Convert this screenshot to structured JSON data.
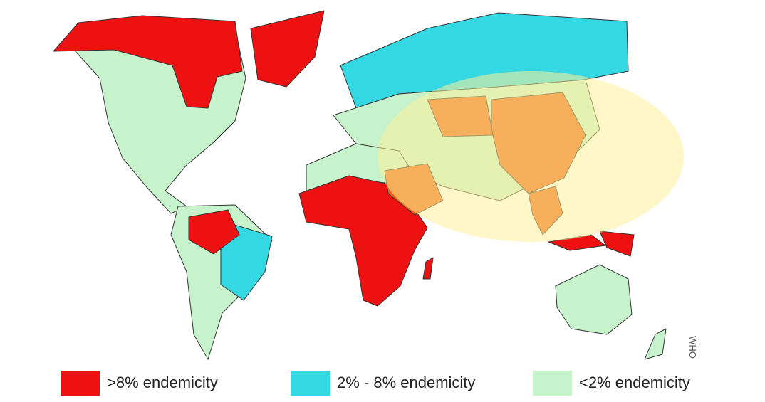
{
  "legend": [
    {
      "label": ">8% endemicity",
      "color": "#ee1111"
    },
    {
      "label": "2% - 8% endemicity",
      "color": "#33d8e2"
    },
    {
      "label": "<2% endemicity",
      "color": "#c6f2cc"
    }
  ],
  "source": "WHO"
}
